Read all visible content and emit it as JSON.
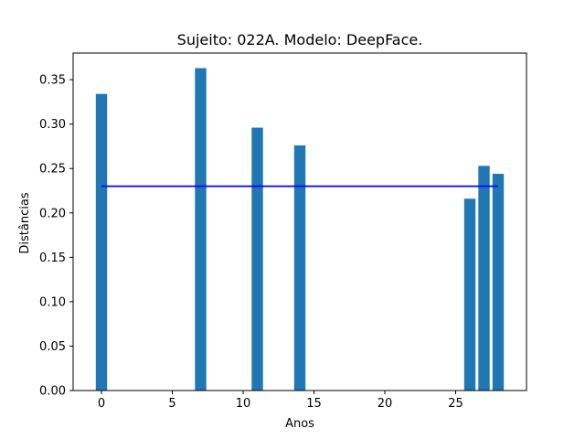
{
  "chart_data": {
    "type": "bar",
    "title": "Sujeito: 022A. Modelo: DeepFace.",
    "xlabel": "Anos",
    "ylabel": "Distâncias",
    "x": [
      0,
      7,
      11,
      14,
      26,
      27,
      28
    ],
    "values": [
      0.334,
      0.363,
      0.296,
      0.276,
      0.216,
      0.253,
      0.244
    ],
    "bar_color": "#1f77b4",
    "mean_line": {
      "value": 0.23,
      "x_range": [
        0,
        28
      ],
      "color": "#0000ff"
    },
    "xlim": [
      -2.0,
      30.0
    ],
    "ylim": [
      0.0,
      0.38
    ],
    "xticks": [
      0,
      5,
      10,
      15,
      20,
      25
    ],
    "xtick_labels": [
      "0",
      "5",
      "10",
      "15",
      "20",
      "25"
    ],
    "yticks": [
      0.0,
      0.05,
      0.1,
      0.15,
      0.2,
      0.25,
      0.3,
      0.35
    ],
    "ytick_labels": [
      "0.00",
      "0.05",
      "0.10",
      "0.15",
      "0.20",
      "0.25",
      "0.30",
      "0.35"
    ],
    "grid": false
  }
}
